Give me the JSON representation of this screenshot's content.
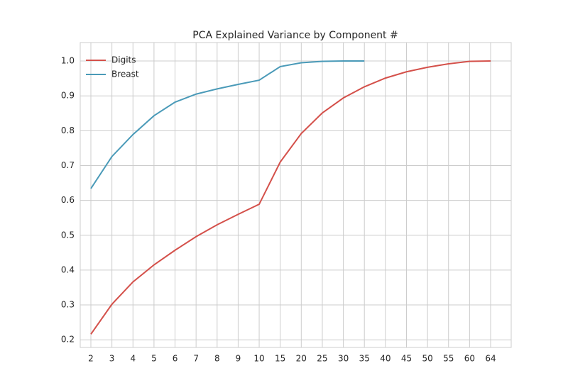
{
  "chart_data": {
    "type": "line",
    "title": "PCA Explained Variance by Component #",
    "categories": [
      "2",
      "3",
      "4",
      "5",
      "6",
      "7",
      "8",
      "9",
      "10",
      "15",
      "20",
      "25",
      "30",
      "35",
      "40",
      "45",
      "50",
      "55",
      "60",
      "64"
    ],
    "series": [
      {
        "name": "Digits",
        "color": "#d4504a",
        "values": [
          0.216,
          0.302,
          0.366,
          0.415,
          0.457,
          0.496,
          0.53,
          0.56,
          0.589,
          0.71,
          0.792,
          0.851,
          0.894,
          0.926,
          0.951,
          0.969,
          0.982,
          0.992,
          0.999,
          1.0
        ]
      },
      {
        "name": "Breast",
        "color": "#4a9ab8",
        "values": [
          0.634,
          0.726,
          0.789,
          0.843,
          0.882,
          0.905,
          0.92,
          0.933,
          0.945,
          0.984,
          0.995,
          0.999,
          1.0,
          1.0,
          null,
          null,
          null,
          null,
          null,
          null
        ]
      }
    ],
    "ylim": [
      0.178,
      1.053
    ],
    "yticks": [
      0.2,
      0.3,
      0.4,
      0.5,
      0.6,
      0.7,
      0.8,
      0.9,
      {
        "value": 1.0,
        "label": "1.0"
      }
    ],
    "grid": true,
    "legend": "upper left"
  }
}
